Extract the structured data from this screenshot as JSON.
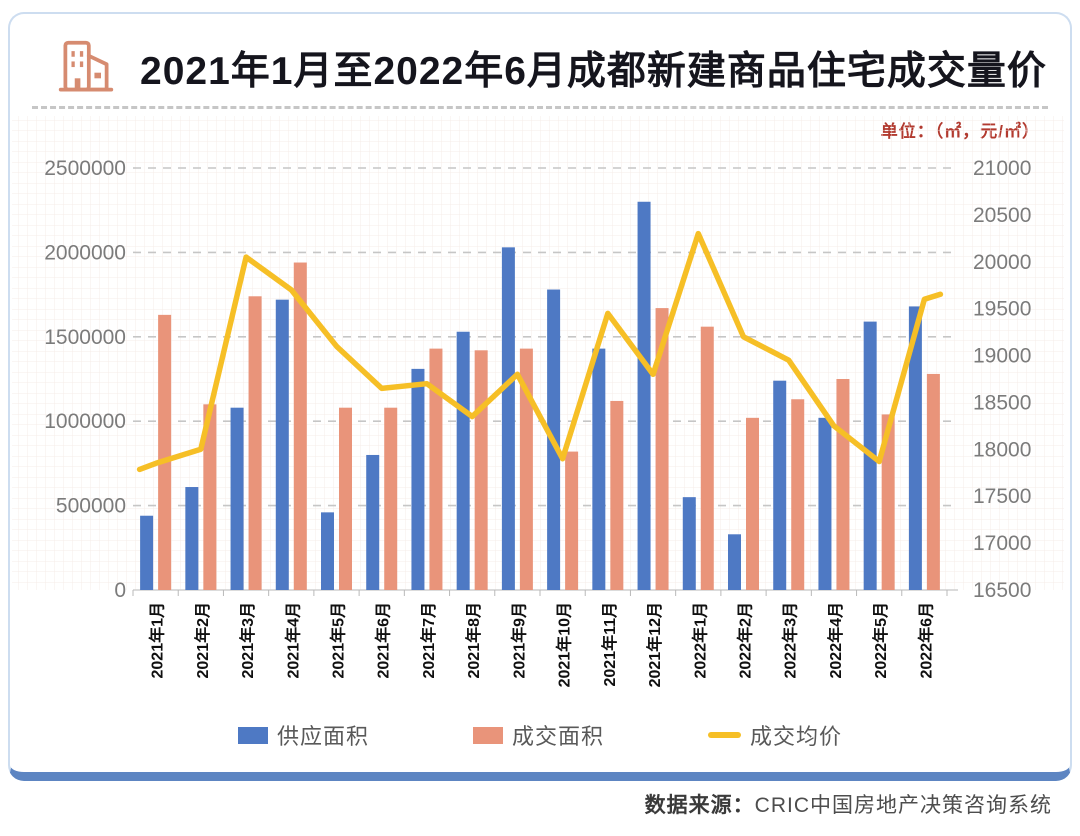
{
  "header": {
    "title_regular": "2021年1月至2022年6月",
    "title_bold": "成都新建商品住宅成交量价",
    "icon": "building-icon",
    "icon_color": "#d68b70"
  },
  "footer": {
    "label": "数据来源：",
    "source": "CRIC中国房地产决策咨询系统"
  },
  "chart_data": {
    "type": "bar+line",
    "title": "2021年1月至2022年6月成都新建商品住宅成交量价",
    "unit_label": "单位：（㎡，元/㎡）",
    "legend_position": "bottom",
    "grid": "fine mesh minor grid, dashed horizontal major gridlines",
    "categories": [
      "2021年1月",
      "2021年2月",
      "2021年3月",
      "2021年4月",
      "2021年5月",
      "2021年6月",
      "2021年7月",
      "2021年8月",
      "2021年9月",
      "2021年10月",
      "2021年11月",
      "2021年12月",
      "2022年1月",
      "2022年2月",
      "2022年3月",
      "2022年4月",
      "2022年5月",
      "2022年6月"
    ],
    "left_axis": {
      "min": 0,
      "max": 2500000,
      "step": 500000,
      "label_color": "#7b7b7b"
    },
    "right_axis": {
      "min": 16500,
      "max": 21000,
      "step": 500,
      "label_color": "#7b7b7b"
    },
    "series": [
      {
        "name": "供应面积",
        "type": "bar",
        "axis": "left",
        "color": "#4e79c4",
        "values": [
          440000,
          610000,
          1080000,
          1720000,
          460000,
          800000,
          1310000,
          1530000,
          2030000,
          1780000,
          1430000,
          2300000,
          550000,
          330000,
          1240000,
          1020000,
          1590000,
          1680000
        ]
      },
      {
        "name": "成交面积",
        "type": "bar",
        "axis": "left",
        "color": "#e9947a",
        "values": [
          1630000,
          1100000,
          1740000,
          1940000,
          1080000,
          1080000,
          1430000,
          1420000,
          1430000,
          820000,
          1120000,
          1670000,
          1560000,
          1020000,
          1130000,
          1250000,
          1040000,
          1280000
        ]
      },
      {
        "name": "成交均价",
        "type": "line",
        "axis": "right",
        "color": "#f6bf26",
        "values": [
          17850,
          18000,
          20050,
          19700,
          19100,
          18650,
          18700,
          18350,
          18800,
          17900,
          19450,
          18800,
          20300,
          19200,
          18950,
          18250,
          17870,
          19600
        ]
      }
    ]
  }
}
